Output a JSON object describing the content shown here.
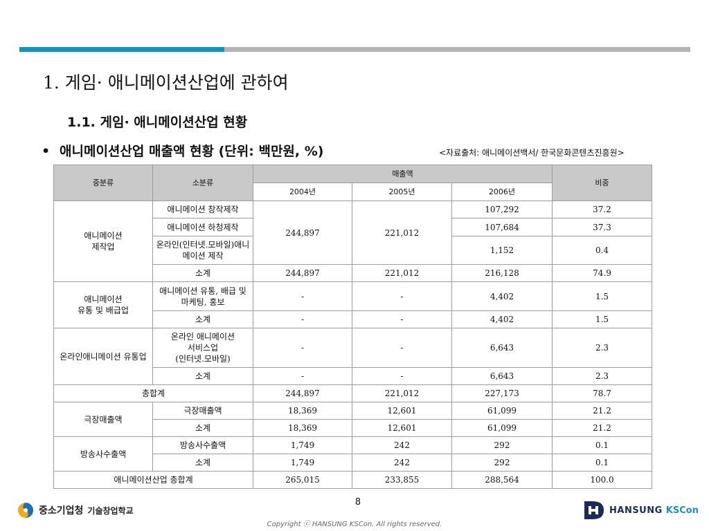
{
  "header": {
    "title": "1. 게임· 애니메이션산업에 관하여",
    "subtitle": "1.1. 게임· 애니메이션산업 현황",
    "bullet_symbol": "•",
    "bullet_text": "애니메이션산업 매출액 현황 (단위: 백만원, %)",
    "source": "<자료출처: 애니메이션백서/ 한국문화콘텐츠진흥원>"
  },
  "table": {
    "h_mid": "중분류",
    "h_small": "소분류",
    "h_sales": "매출액",
    "h_ratio": "비중",
    "years": [
      "2004년",
      "2005년",
      "2006년"
    ],
    "g1": {
      "name": "애니메이션\n제작업",
      "r1": {
        "sub": "애니메이션 창작제작",
        "y2006": "107,292",
        "ratio": "37.2"
      },
      "r2": {
        "sub": "애니메이션 하청제작",
        "y2006": "107,684",
        "ratio": "37.3"
      },
      "r3": {
        "sub": "온라인(인터넷.모바일)애니메이션 제작",
        "y2006": "1,152",
        "ratio": "0.4"
      },
      "merged2004": "244,897",
      "merged2005": "221,012",
      "sub_total": {
        "label": "소계",
        "y2004": "244,897",
        "y2005": "221,012",
        "y2006": "216,128",
        "ratio": "74.9"
      }
    },
    "g2": {
      "name": "애니메이션\n유통 및 배급업",
      "r1": {
        "sub": "애니메이션 유통, 배급 및 마케팅, 홍보",
        "y2004": "-",
        "y2005": "-",
        "y2006": "4,402",
        "ratio": "1.5"
      },
      "sub_total": {
        "label": "소계",
        "y2004": "-",
        "y2005": "-",
        "y2006": "4,402",
        "ratio": "1.5"
      }
    },
    "g3": {
      "name": "온라인애니메이션 유통업",
      "r1": {
        "sub": "온라인 애니메이션\n서비스업\n(인터넷.모바일)",
        "y2004": "-",
        "y2005": "-",
        "y2006": "6,643",
        "ratio": "2.3"
      },
      "sub_total": {
        "label": "소계",
        "y2004": "-",
        "y2005": "-",
        "y2006": "6,643",
        "ratio": "2.3"
      }
    },
    "total": {
      "label": "총합계",
      "y2004": "244,897",
      "y2005": "221,012",
      "y2006": "227,173",
      "ratio": "78.7"
    },
    "g4": {
      "name": "극장매출액",
      "r1": {
        "sub": "극장매출액",
        "y2004": "18,369",
        "y2005": "12,601",
        "y2006": "61,099",
        "ratio": "21.2"
      },
      "sub_total": {
        "label": "소계",
        "y2004": "18,369",
        "y2005": "12,601",
        "y2006": "61,099",
        "ratio": "21.2"
      }
    },
    "g5": {
      "name": "방송사수출액",
      "r1": {
        "sub": "방송사수출액",
        "y2004": "1,749",
        "y2005": "242",
        "y2006": "292",
        "ratio": "0.1"
      },
      "sub_total": {
        "label": "소계",
        "y2004": "1,749",
        "y2005": "242",
        "y2006": "292",
        "ratio": "0.1"
      }
    },
    "grand": {
      "label": "애니메이션산업 총합계",
      "y2004": "265,015",
      "y2005": "233,855",
      "y2006": "288,564",
      "ratio": "100.0"
    }
  },
  "footer": {
    "page_number": "8",
    "left_logo_main": "중소기업청",
    "left_logo_sub": "기술창업학교",
    "copyright": "Copyright ⓒ HANSUNG KSCon. All rights reserved.",
    "right_logo_main": "HANSUNG",
    "right_logo_sub": "KSCon"
  },
  "colors": {
    "accent_bar": "#1f8fb5",
    "grey_bar": "#b4b4b4",
    "header_fill": "#c9c9c9"
  }
}
